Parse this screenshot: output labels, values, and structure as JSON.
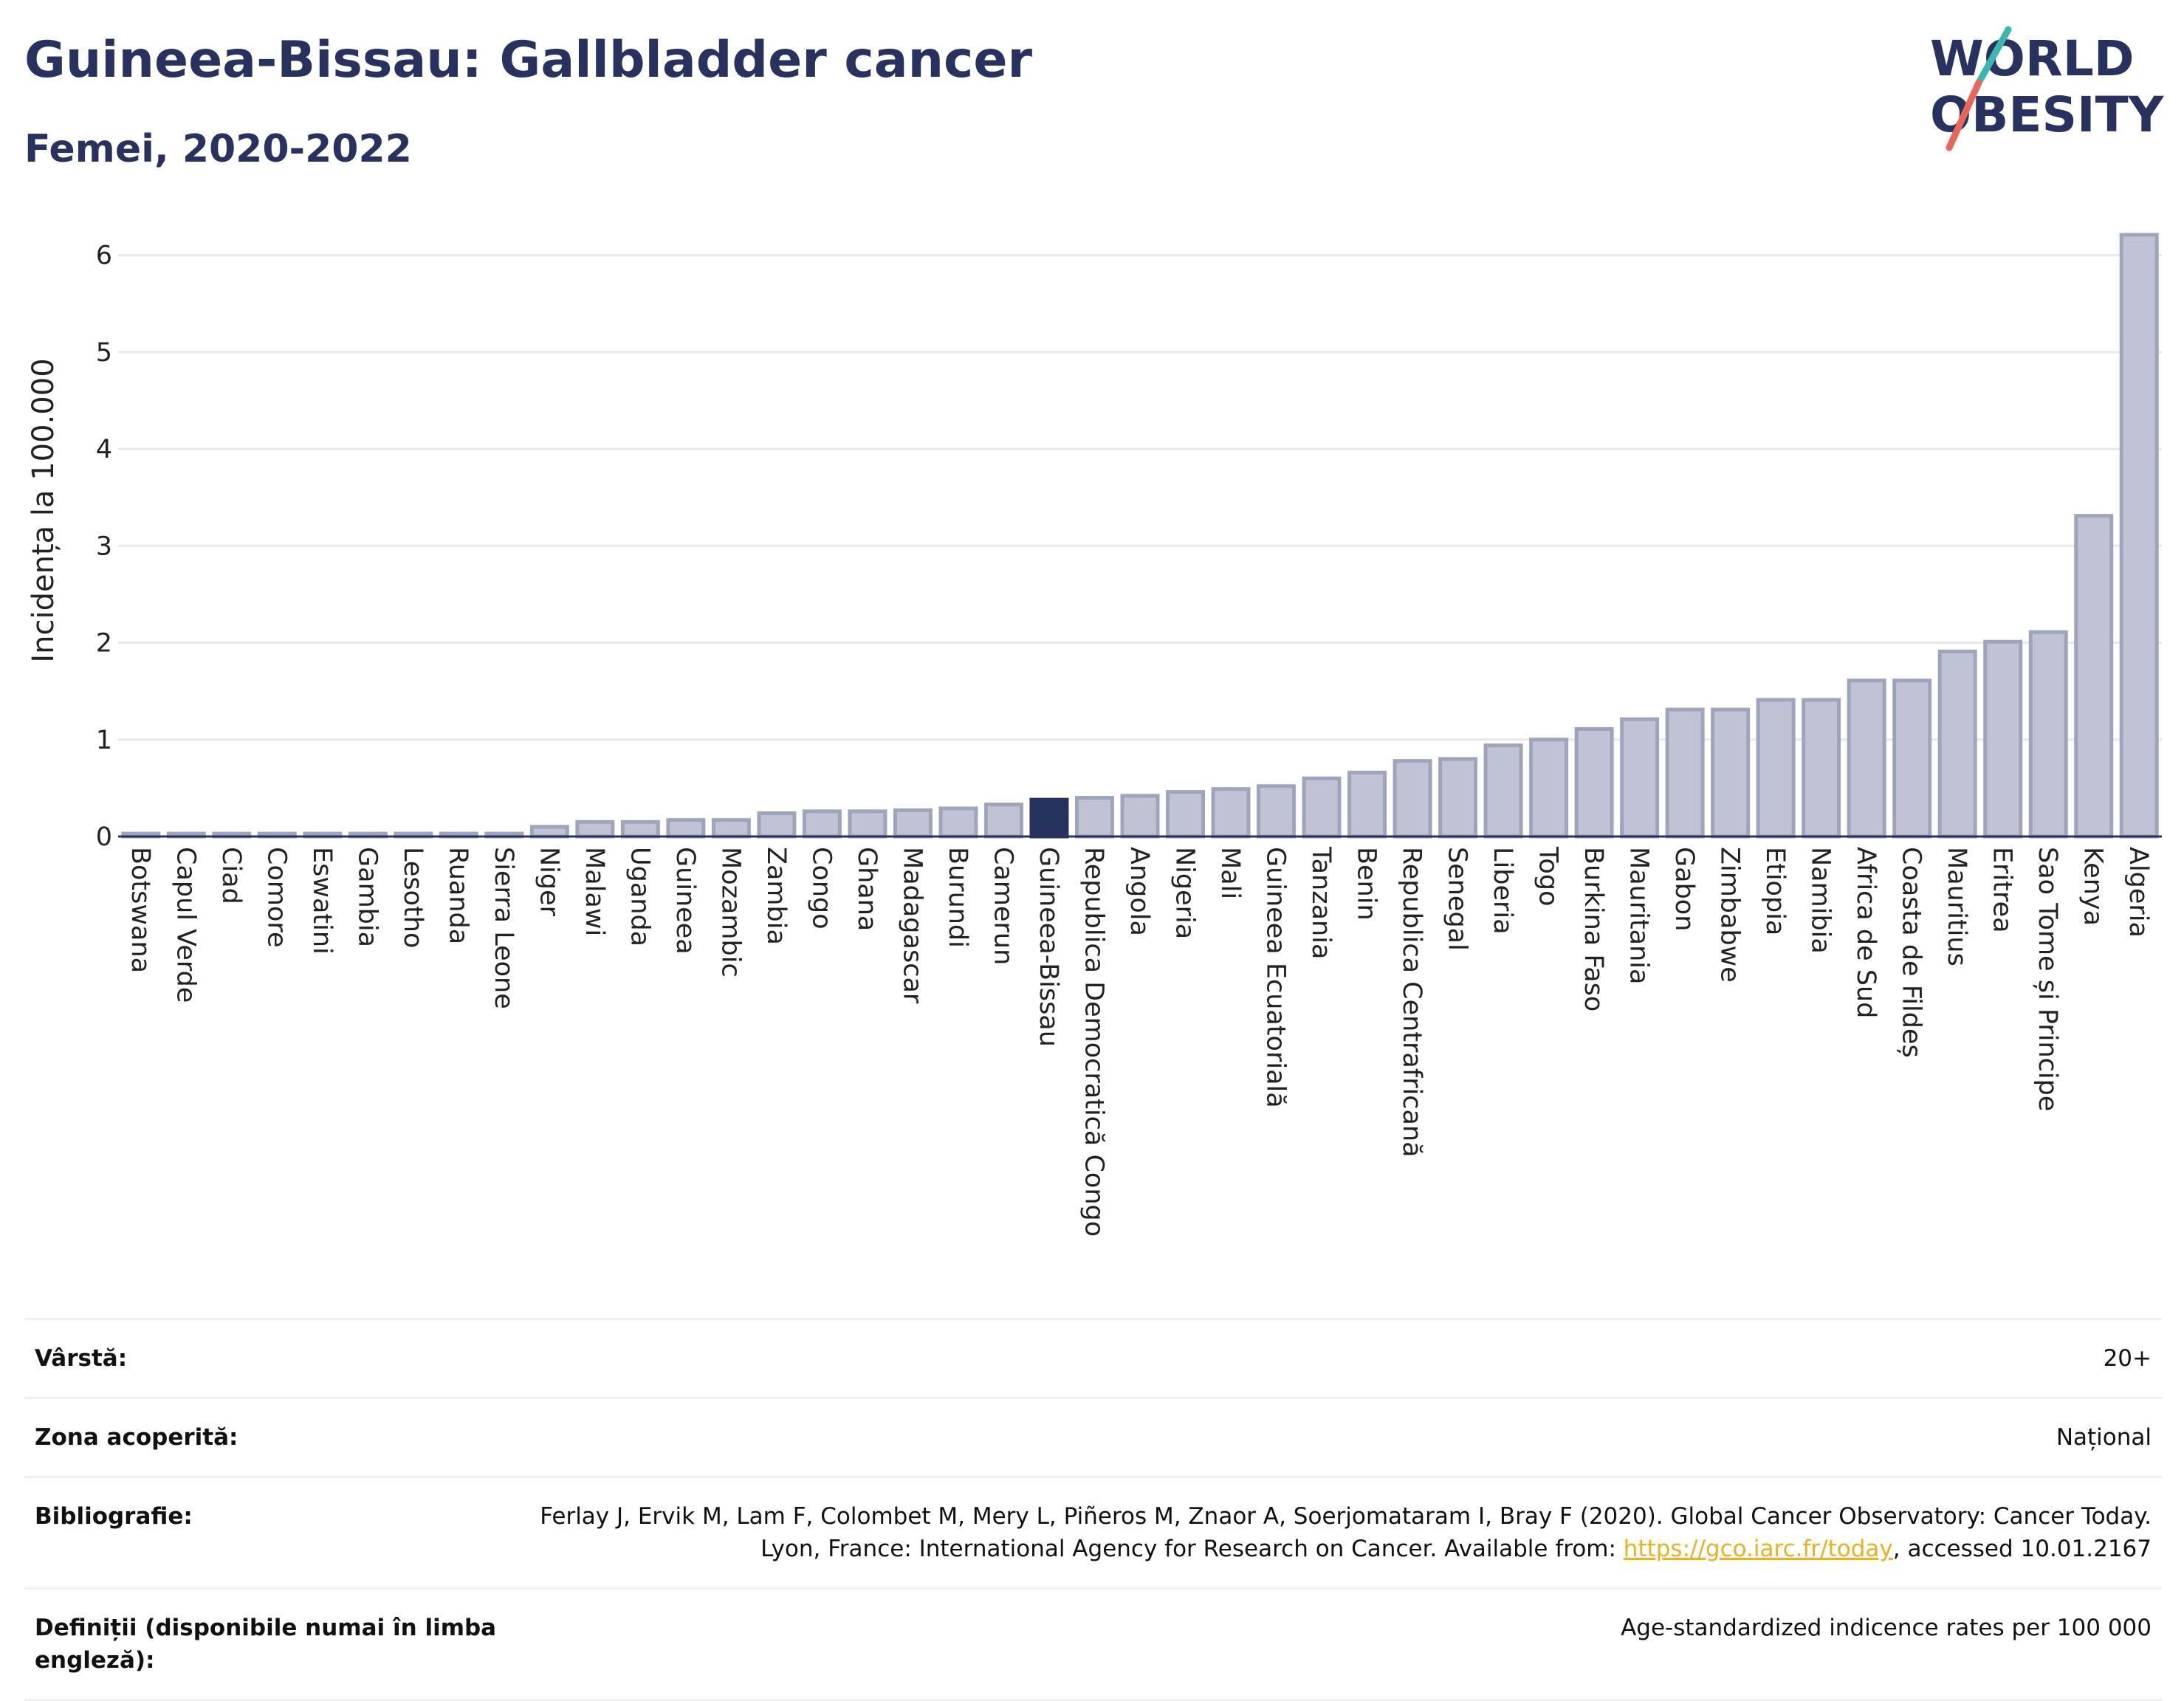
{
  "header": {
    "title": "Guineea-Bissau: Gallbladder cancer",
    "subtitle": "Femei, 2020-2022"
  },
  "logo": {
    "line1": "WORLD",
    "line2": "OBESITY",
    "brand_dark": "#27325f",
    "brand_teal": "#3db5b0",
    "brand_red": "#e8675c"
  },
  "colors": {
    "bar_fill": "#bfc3d3",
    "bar_stroke": "#9ea4bc",
    "highlight": "#27325f",
    "grid": "#e6e8ee"
  },
  "chart_data": {
    "type": "bar",
    "ylabel": "Incidența la 100.000",
    "ylim": [
      0,
      6.5
    ],
    "yticks": [
      0,
      1,
      2,
      3,
      4,
      5,
      6
    ],
    "highlight": "Guineea-Bissau",
    "categories": [
      "Botswana",
      "Capul Verde",
      "Ciad",
      "Comore",
      "Eswatini",
      "Gambia",
      "Lesotho",
      "Ruanda",
      "Sierra Leone",
      "Niger",
      "Malawi",
      "Uganda",
      "Guineea",
      "Mozambic",
      "Zambia",
      "Congo",
      "Ghana",
      "Madagascar",
      "Burundi",
      "Camerun",
      "Guineea-Bissau",
      "Republica Democratică Congo",
      "Angola",
      "Nigeria",
      "Mali",
      "Guineea Ecuatorială",
      "Tanzania",
      "Benin",
      "Republica Centrafricană",
      "Senegal",
      "Liberia",
      "Togo",
      "Burkina Faso",
      "Mauritania",
      "Gabon",
      "Zimbabwe",
      "Etiopia",
      "Namibia",
      "Africa de Sud",
      "Coasta de Fildeș",
      "Mauritius",
      "Eritrea",
      "Sao Tome și Principe",
      "Kenya",
      "Algeria"
    ],
    "values": [
      0.03,
      0.03,
      0.03,
      0.03,
      0.03,
      0.03,
      0.03,
      0.03,
      0.03,
      0.1,
      0.15,
      0.15,
      0.17,
      0.17,
      0.24,
      0.26,
      0.26,
      0.27,
      0.29,
      0.33,
      0.38,
      0.4,
      0.42,
      0.46,
      0.49,
      0.52,
      0.6,
      0.66,
      0.78,
      0.8,
      0.94,
      1.0,
      1.11,
      1.21,
      1.31,
      1.31,
      1.41,
      1.41,
      1.61,
      1.61,
      1.91,
      2.01,
      2.11,
      3.31,
      6.21
    ]
  },
  "info": [
    {
      "key": "Vârstă:",
      "value": "20+"
    },
    {
      "key": "Zona acoperită:",
      "value": "Național"
    },
    {
      "key": "Bibliografie:",
      "value_pre": "Ferlay J, Ervik M, Lam F, Colombet M, Mery L, Piñeros M, Znaor A, Soerjomataram I, Bray F (2020). Global Cancer Observatory: Cancer Today. Lyon, France: International Agency for Research on Cancer. Available from: ",
      "link": "https://gco.iarc.fr/today",
      "value_post": ", accessed 10.01.2167"
    },
    {
      "key": "Definiții (disponibile numai în limba engleză):",
      "value": "Age-standardized indicence rates per 100 000"
    }
  ]
}
